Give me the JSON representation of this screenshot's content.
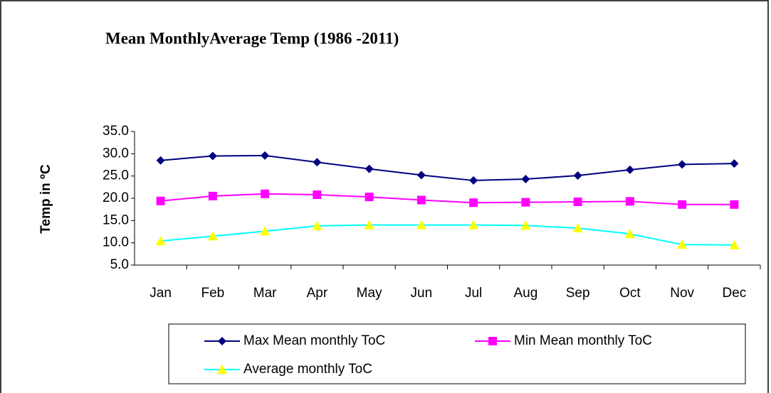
{
  "chart_data": {
    "type": "line",
    "title": "Mean MonthlyAverage Temp (1986 -2011)",
    "y_label": "Temp in ºC",
    "categories": [
      "Jan",
      "Feb",
      "Mar",
      "Apr",
      "May",
      "Jun",
      "Jul",
      "Aug",
      "Sep",
      "Oct",
      "Nov",
      "Dec"
    ],
    "series": [
      {
        "name": "Max Mean monthly ToC",
        "color": "#000080",
        "marker": "diamond",
        "marker_color": "#000080",
        "values": [
          28.5,
          29.5,
          29.6,
          28.1,
          26.6,
          25.2,
          24.0,
          24.3,
          25.1,
          26.4,
          27.6,
          27.8
        ]
      },
      {
        "name": "Min Mean monthly ToC",
        "color": "#ff00ff",
        "marker": "square",
        "marker_color": "#ff00ff",
        "values": [
          19.4,
          20.5,
          21.0,
          20.8,
          20.3,
          19.6,
          19.0,
          19.1,
          19.2,
          19.3,
          18.6,
          18.6
        ]
      },
      {
        "name": "Average  monthly ToC",
        "color": "#00ffff",
        "marker": "triangle",
        "marker_color": "#ffff00",
        "values": [
          10.4,
          11.5,
          12.6,
          13.8,
          14.0,
          14.0,
          14.0,
          13.9,
          13.3,
          12.0,
          9.6,
          9.5
        ]
      }
    ],
    "ylim": [
      5,
      35
    ],
    "yticks": [
      {
        "value": 5,
        "label": "5.0"
      },
      {
        "value": 10,
        "label": "10.0"
      },
      {
        "value": 15,
        "label": "15.0"
      },
      {
        "value": 20,
        "label": "20.0"
      },
      {
        "value": 25,
        "label": "25.0"
      },
      {
        "value": 30,
        "label": "30.0"
      },
      {
        "value": 35,
        "label": "35.0"
      }
    ],
    "grid": false,
    "legend": "bottom"
  }
}
